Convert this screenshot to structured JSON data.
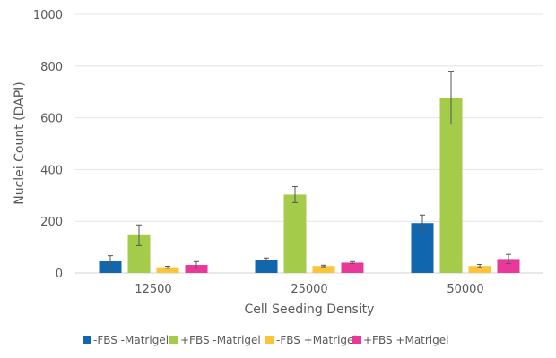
{
  "chart_data": {
    "type": "bar",
    "title": "",
    "xlabel": "Cell Seeding Density",
    "ylabel": "Nuclei Count (DAPI)",
    "ylim": [
      0,
      1000
    ],
    "yticks": [
      0,
      200,
      400,
      600,
      800,
      1000
    ],
    "grid": true,
    "legend_position": "bottom",
    "categories": [
      "12500",
      "25000",
      "50000"
    ],
    "series": [
      {
        "name": "-FBS -Matrigel",
        "color": "#1166b0",
        "values": [
          45,
          51,
          193
        ],
        "errors": [
          22,
          7,
          31
        ]
      },
      {
        "name": "+FBS -Matrigel",
        "color": "#a4cb4a",
        "values": [
          146,
          303,
          678
        ],
        "errors": [
          40,
          31,
          102
        ]
      },
      {
        "name": "-FBS +Matrigel",
        "color": "#fdc43a",
        "values": [
          22,
          27,
          27
        ],
        "errors": [
          4,
          3,
          6
        ]
      },
      {
        "name": "+FBS +Matrigel",
        "color": "#e8399a",
        "values": [
          31,
          40,
          54
        ],
        "errors": [
          13,
          4,
          18
        ]
      }
    ]
  }
}
